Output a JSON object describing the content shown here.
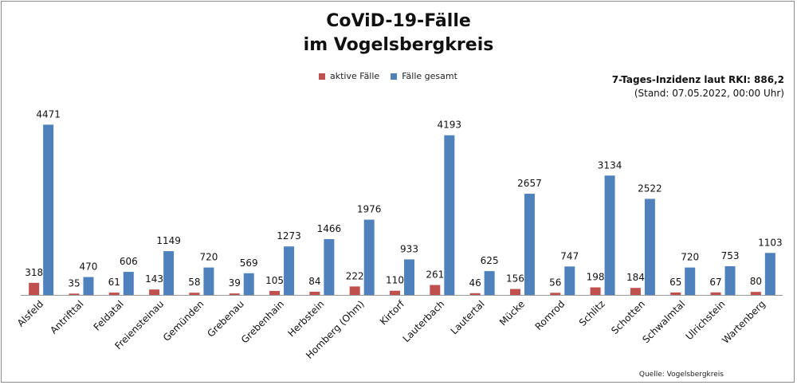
{
  "title_line1": "CoViD-19-Fälle",
  "title_line2": "im Vogelsbergkreis",
  "incidence_text": "7-Tages-Inzidenz laut RKI: 886,2",
  "stand_text": "(Stand: 07.05.2022, 00:00 Uhr)",
  "source_text": "Quelle: Vogelsbergkreis",
  "colors": {
    "active": "#c0504d",
    "total": "#4f81bd"
  },
  "chart_data": {
    "type": "bar",
    "title": "CoViD-19-Fälle im Vogelsbergkreis",
    "legend_position": "top",
    "grid": false,
    "categories": [
      "Alsfeld",
      "Antrifttal",
      "Feldatal",
      "Freiensteinau",
      "Gemünden",
      "Grebenau",
      "Grebenhain",
      "Herbstein",
      "Homberg (Ohm)",
      "Kirtorf",
      "Lauterbach",
      "Lautertal",
      "Mücke",
      "Romrod",
      "Schlitz",
      "Schotten",
      "Schwalmtal",
      "Ulrichstein",
      "Wartenberg"
    ],
    "series": [
      {
        "name": "aktive Fälle",
        "values": [
          318,
          35,
          61,
          143,
          58,
          39,
          105,
          84,
          222,
          110,
          261,
          46,
          156,
          56,
          198,
          184,
          65,
          67,
          80
        ]
      },
      {
        "name": "Fälle gesamt",
        "values": [
          4471,
          470,
          606,
          1149,
          720,
          569,
          1273,
          1466,
          1976,
          933,
          4193,
          625,
          2657,
          747,
          3134,
          2522,
          720,
          753,
          1103
        ]
      }
    ],
    "ylim": [
      0,
      4500
    ]
  }
}
